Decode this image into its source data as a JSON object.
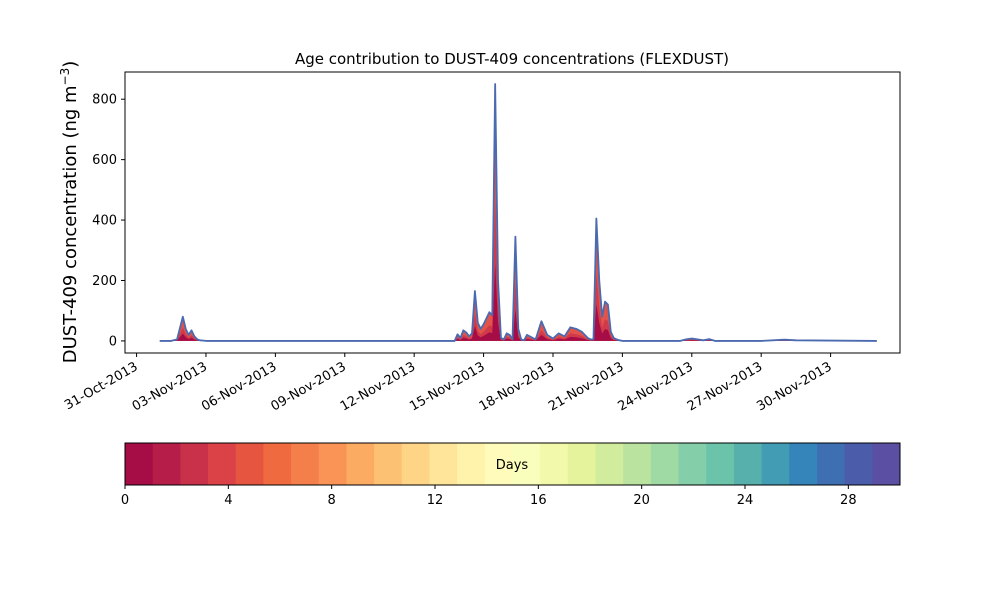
{
  "chart_data": {
    "type": "area",
    "title": "Age contribution to DUST-409 concentrations (FLEXDUST)",
    "ylabel": "DUST-409 concentration (ng m",
    "ylabel_sup": "−3",
    "ylabel_close": ")",
    "xlabel": "",
    "ylim": [
      -40,
      890
    ],
    "xlim": [
      "2013-10-30T12:00",
      "2013-12-03T00:00"
    ],
    "yticks": [
      0,
      200,
      400,
      600,
      800
    ],
    "xtick_labels": [
      "31-Oct-2013",
      "03-Nov-2013",
      "06-Nov-2013",
      "09-Nov-2013",
      "12-Nov-2013",
      "15-Nov-2013",
      "18-Nov-2013",
      "21-Nov-2013",
      "24-Nov-2013",
      "27-Nov-2013",
      "30-Nov-2013"
    ],
    "xtick_dates": [
      "2013-10-31",
      "2013-11-03",
      "2013-11-06",
      "2013-11-09",
      "2013-11-12",
      "2013-11-15",
      "2013-11-18",
      "2013-11-21",
      "2013-11-24",
      "2013-11-27",
      "2013-11-30"
    ],
    "total_concentration": {
      "x": [
        "2013-11-01T00:00",
        "2013-11-01T12:00",
        "2013-11-01T18:00",
        "2013-11-02T00:00",
        "2013-11-02T03:00",
        "2013-11-02T06:00",
        "2013-11-02T09:00",
        "2013-11-02T12:00",
        "2013-11-02T15:00",
        "2013-11-02T18:00",
        "2013-11-03T00:00",
        "2013-11-13T18:00",
        "2013-11-13T21:00",
        "2013-11-14T00:00",
        "2013-11-14T03:00",
        "2013-11-14T06:00",
        "2013-11-14T09:00",
        "2013-11-14T12:00",
        "2013-11-14T15:00",
        "2013-11-14T18:00",
        "2013-11-14T21:00",
        "2013-11-15T00:00",
        "2013-11-15T03:00",
        "2013-11-15T06:00",
        "2013-11-15T09:00",
        "2013-11-15T12:00",
        "2013-11-15T15:00",
        "2013-11-15T18:00",
        "2013-11-15T21:00",
        "2013-11-16T00:00",
        "2013-11-16T03:00",
        "2013-11-16T06:00",
        "2013-11-16T09:00",
        "2013-11-16T12:00",
        "2013-11-16T15:00",
        "2013-11-16T18:00",
        "2013-11-16T21:00",
        "2013-11-17T00:00",
        "2013-11-17T06:00",
        "2013-11-17T12:00",
        "2013-11-17T18:00",
        "2013-11-18T00:00",
        "2013-11-18T06:00",
        "2013-11-18T12:00",
        "2013-11-18T18:00",
        "2013-11-19T00:00",
        "2013-11-19T06:00",
        "2013-11-19T12:00",
        "2013-11-19T15:00",
        "2013-11-19T18:00",
        "2013-11-19T21:00",
        "2013-11-20T00:00",
        "2013-11-20T03:00",
        "2013-11-20T06:00",
        "2013-11-20T09:00",
        "2013-11-20T12:00",
        "2013-11-20T15:00",
        "2013-11-20T18:00",
        "2013-11-20T21:00",
        "2013-11-21T00:00",
        "2013-11-21T12:00",
        "2013-11-23T12:00",
        "2013-11-23T18:00",
        "2013-11-24T00:00",
        "2013-11-24T12:00",
        "2013-11-24T18:00",
        "2013-11-25T00:00",
        "2013-11-27T00:00",
        "2013-11-28T00:00",
        "2013-11-28T12:00",
        "2013-12-02T00:00"
      ],
      "y": [
        0,
        0,
        5,
        80,
        40,
        20,
        35,
        15,
        5,
        2,
        0,
        0,
        22,
        10,
        35,
        28,
        15,
        25,
        165,
        60,
        40,
        55,
        75,
        95,
        85,
        850,
        200,
        10,
        5,
        25,
        20,
        5,
        345,
        40,
        5,
        2,
        20,
        15,
        5,
        65,
        20,
        8,
        25,
        15,
        45,
        40,
        30,
        10,
        5,
        5,
        405,
        200,
        80,
        130,
        120,
        30,
        10,
        5,
        2,
        0,
        0,
        0,
        5,
        8,
        2,
        6,
        0,
        0,
        4,
        2,
        0
      ]
    }
  },
  "colorbar": {
    "label": "Days",
    "tick_values": [
      0,
      4,
      8,
      12,
      16,
      20,
      24,
      28
    ],
    "range": [
      0,
      30
    ],
    "colors": [
      "#a60c46",
      "#b61d48",
      "#c9314a",
      "#da4248",
      "#e5553f",
      "#ef6a3e",
      "#f57f4b",
      "#f99456",
      "#fcab62",
      "#fdc174",
      "#fed486",
      "#fee599",
      "#fff3ab",
      "#fffcbb",
      "#fafebc",
      "#f2f9aa",
      "#e4f39c",
      "#d1ec9c",
      "#b9e39f",
      "#9fd9a4",
      "#84ceaa",
      "#6bc3a9",
      "#57b0ac",
      "#429cb4",
      "#3585bb",
      "#3d6fb2",
      "#4b5caa",
      "#5a4fa2"
    ]
  }
}
